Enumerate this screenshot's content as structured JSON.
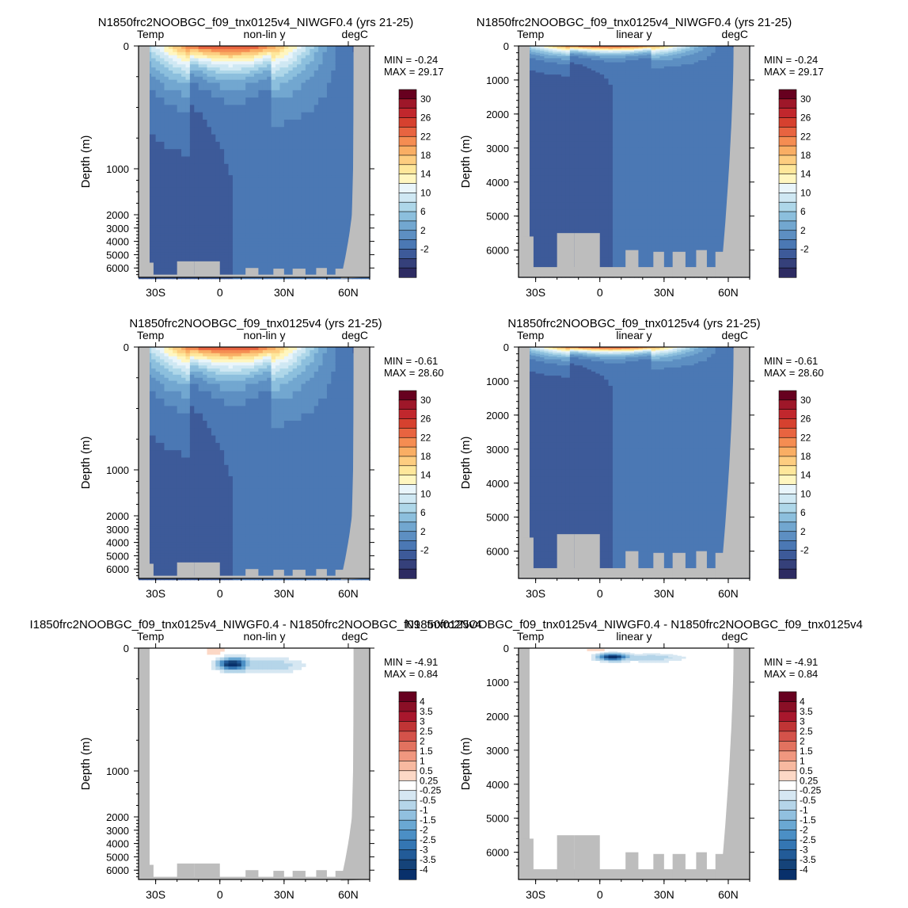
{
  "figure": {
    "variable": "Temp",
    "units": "degC",
    "x_tick_labels": [
      "30S",
      "0",
      "30N",
      "60N"
    ],
    "x_tick_values": [
      -30,
      0,
      30,
      60
    ],
    "y_label": "Depth (m)",
    "land_color": "#bdbdbd"
  },
  "colorbars": {
    "full": {
      "labels": [
        "30",
        "26",
        "22",
        "18",
        "14",
        "10",
        "6",
        "2",
        "-2"
      ],
      "colors": [
        "#67001f",
        "#9e1729",
        "#c1272d",
        "#d6412f",
        "#e86440",
        "#f58d52",
        "#f9ae64",
        "#fdcd80",
        "#fee79b",
        "#fff6c0",
        "#e9f5fb",
        "#cfe8f3",
        "#aed7e9",
        "#8cbfdd",
        "#72a7d0",
        "#5d8fc2",
        "#4b78b4",
        "#3d5a99",
        "#35407a",
        "#2d2b62"
      ]
    },
    "diff": {
      "labels": [
        "4",
        "3.5",
        "3",
        "2.5",
        "2",
        "1.5",
        "1",
        "0.5",
        "0.25",
        "-0.25",
        "-0.5",
        "-1",
        "-1.5",
        "-2",
        "-2.5",
        "-3",
        "-3.5",
        "-4"
      ],
      "colors": [
        "#67001f",
        "#8a0f26",
        "#a8172d",
        "#c03435",
        "#d4524a",
        "#e2725f",
        "#f0977f",
        "#f7b9a0",
        "#fcd8c6",
        "#ffffff",
        "#d6e7f2",
        "#b5d5e9",
        "#91c0df",
        "#6aa8d3",
        "#4b8fc5",
        "#3476b3",
        "#225b98",
        "#154379",
        "#08306b"
      ]
    }
  },
  "panels": [
    {
      "title": "N1850frc2NOOBGC_f09_tnx0125v4_NIWGF0.4 (yrs 21-25)",
      "yscale": "non-lin y",
      "min_label": "MIN =  -0.24",
      "max_label": "MAX =  29.17",
      "y_tick_labels": [
        "0",
        "1000",
        "2000",
        "3000",
        "4000",
        "5000",
        "6000"
      ],
      "colorbar": "full"
    },
    {
      "title": "N1850frc2NOOBGC_f09_tnx0125v4_NIWGF0.4 (yrs 21-25)",
      "yscale": "linear y",
      "min_label": "MIN =  -0.24",
      "max_label": "MAX =  29.17",
      "y_tick_labels": [
        "0",
        "1000",
        "2000",
        "3000",
        "4000",
        "5000",
        "6000"
      ],
      "colorbar": "full"
    },
    {
      "title": "N1850frc2NOOBGC_f09_tnx0125v4 (yrs 21-25)",
      "yscale": "non-lin y",
      "min_label": "MIN =  -0.61",
      "max_label": "MAX =  28.60",
      "y_tick_labels": [
        "0",
        "1000",
        "2000",
        "3000",
        "4000",
        "5000",
        "6000"
      ],
      "colorbar": "full"
    },
    {
      "title": "N1850frc2NOOBGC_f09_tnx0125v4 (yrs 21-25)",
      "yscale": "linear y",
      "min_label": "MIN =  -0.61",
      "max_label": "MAX =  28.60",
      "y_tick_labels": [
        "0",
        "1000",
        "2000",
        "3000",
        "4000",
        "5000",
        "6000"
      ],
      "colorbar": "full"
    },
    {
      "title": "I1850frc2NOOBGC_f09_tnx0125v4_NIWGF0.4 - N1850frc2NOOBGC_f09_tnx0125v4",
      "yscale": "non-lin y",
      "min_label": "MIN =  -4.91",
      "max_label": "MAX =   0.84",
      "y_tick_labels": [
        "0",
        "1000",
        "2000",
        "3000",
        "4000",
        "5000",
        "6000"
      ],
      "colorbar": "diff"
    },
    {
      "title": "N1850frc2NOOBGC_f09_tnx0125v4_NIWGF0.4 - N1850frc2NOOBGC_f09_tnx0125v4",
      "yscale": "linear y",
      "min_label": "MIN =  -4.91",
      "max_label": "MAX =   0.84",
      "y_tick_labels": [
        "0",
        "1000",
        "2000",
        "3000",
        "4000",
        "5000",
        "6000"
      ],
      "colorbar": "diff"
    }
  ],
  "chart_data": [
    {
      "type": "heatmap",
      "title": "N1850frc2NOOBGC_f09_tnx0125v4_NIWGF0.4 (yrs 21-25)",
      "subtitle": "Temp non-lin y degC",
      "ylabel": "Depth (m)",
      "x_ticks": [
        "30S",
        "0",
        "30N",
        "60N"
      ],
      "y_ticks": [
        0,
        1000,
        2000,
        3000,
        4000,
        5000,
        6000
      ],
      "min": -0.24,
      "max": 29.17,
      "zlevels": [
        -2,
        0,
        2,
        4,
        6,
        8,
        10,
        12,
        14,
        16,
        18,
        20,
        22,
        24,
        26,
        28,
        30
      ]
    },
    {
      "type": "heatmap",
      "title": "N1850frc2NOOBGC_f09_tnx0125v4_NIWGF0.4 (yrs 21-25)",
      "subtitle": "Temp linear y degC",
      "ylabel": "Depth (m)",
      "x_ticks": [
        "30S",
        "0",
        "30N",
        "60N"
      ],
      "y_ticks": [
        0,
        1000,
        2000,
        3000,
        4000,
        5000,
        6000
      ],
      "min": -0.24,
      "max": 29.17,
      "zlevels": [
        -2,
        0,
        2,
        4,
        6,
        8,
        10,
        12,
        14,
        16,
        18,
        20,
        22,
        24,
        26,
        28,
        30
      ]
    },
    {
      "type": "heatmap",
      "title": "N1850frc2NOOBGC_f09_tnx0125v4 (yrs 21-25)",
      "subtitle": "Temp non-lin y degC",
      "ylabel": "Depth (m)",
      "x_ticks": [
        "30S",
        "0",
        "30N",
        "60N"
      ],
      "y_ticks": [
        0,
        1000,
        2000,
        3000,
        4000,
        5000,
        6000
      ],
      "min": -0.61,
      "max": 28.6,
      "zlevels": [
        -2,
        0,
        2,
        4,
        6,
        8,
        10,
        12,
        14,
        16,
        18,
        20,
        22,
        24,
        26,
        28,
        30
      ]
    },
    {
      "type": "heatmap",
      "title": "N1850frc2NOOBGC_f09_tnx0125v4 (yrs 21-25)",
      "subtitle": "Temp linear y degC",
      "ylabel": "Depth (m)",
      "x_ticks": [
        "30S",
        "0",
        "30N",
        "60N"
      ],
      "y_ticks": [
        0,
        1000,
        2000,
        3000,
        4000,
        5000,
        6000
      ],
      "min": -0.61,
      "max": 28.6,
      "zlevels": [
        -2,
        0,
        2,
        4,
        6,
        8,
        10,
        12,
        14,
        16,
        18,
        20,
        22,
        24,
        26,
        28,
        30
      ]
    },
    {
      "type": "heatmap",
      "title": "I1850frc2NOOBGC_f09_tnx0125v4_NIWGF0.4 - N1850frc2NOOBGC_f09_tnx0125v4",
      "subtitle": "Temp non-lin y degC",
      "ylabel": "Depth (m)",
      "x_ticks": [
        "30S",
        "0",
        "30N",
        "60N"
      ],
      "y_ticks": [
        0,
        1000,
        2000,
        3000,
        4000,
        5000,
        6000
      ],
      "min": -4.91,
      "max": 0.84,
      "zlevels": [
        -4,
        -3.5,
        -3,
        -2.5,
        -2,
        -1.5,
        -1,
        -0.5,
        -0.25,
        0.25,
        0.5,
        1,
        1.5,
        2,
        2.5,
        3,
        3.5,
        4
      ]
    },
    {
      "type": "heatmap",
      "title": "N1850frc2NOOBGC_f09_tnx0125v4_NIWGF0.4 - N1850frc2NOOBGC_f09_tnx0125v4",
      "subtitle": "Temp linear y degC",
      "ylabel": "Depth (m)",
      "x_ticks": [
        "30S",
        "0",
        "30N",
        "60N"
      ],
      "y_ticks": [
        0,
        1000,
        2000,
        3000,
        4000,
        5000,
        6000
      ],
      "min": -4.91,
      "max": 0.84,
      "zlevels": [
        -4,
        -3.5,
        -3,
        -2.5,
        -2,
        -1.5,
        -1,
        -0.5,
        -0.25,
        0.25,
        0.5,
        1,
        1.5,
        2,
        2.5,
        3,
        3.5,
        4
      ]
    }
  ]
}
